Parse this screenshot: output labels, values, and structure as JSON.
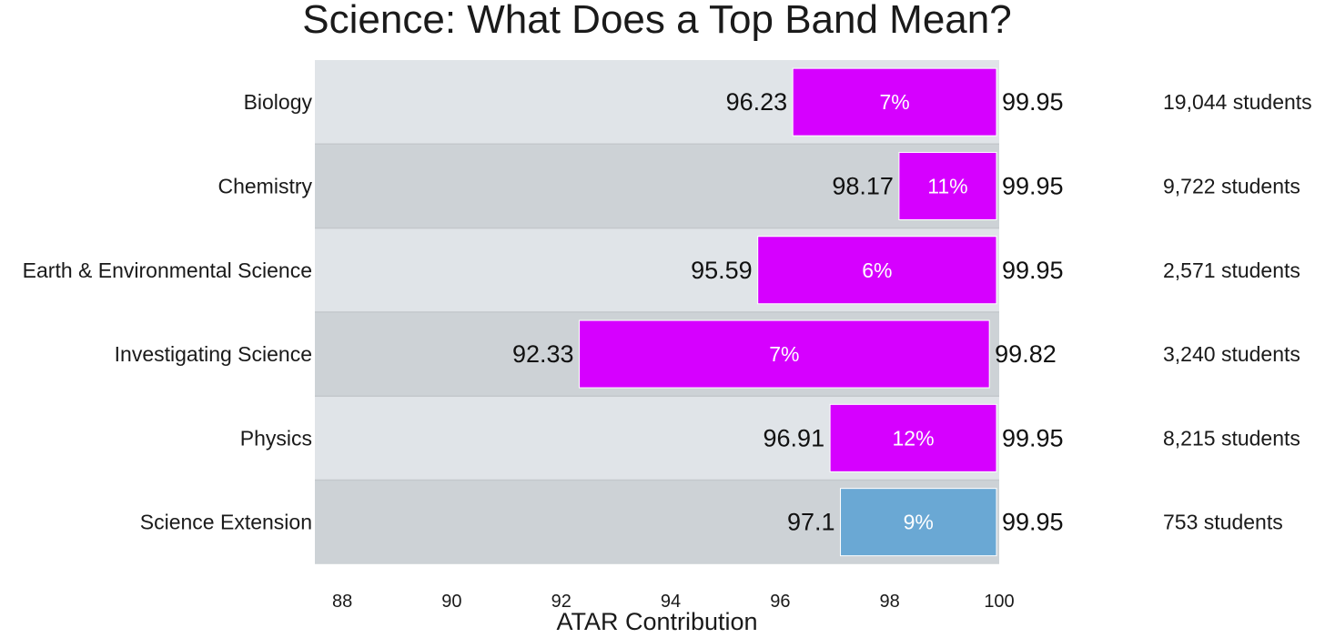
{
  "chart_data": {
    "type": "bar",
    "title": "Science: What Does a Top Band Mean?",
    "xlabel": "ATAR Contribution",
    "ylabel": "",
    "xlim": [
      87.5,
      100
    ],
    "x_ticks": [
      "88",
      "90",
      "92",
      "94",
      "96",
      "98",
      "100"
    ],
    "grid": false,
    "categories": [
      "Biology",
      "Chemistry",
      "Earth & Environmental Science",
      "Investigating Science",
      "Physics",
      "Science Extension"
    ],
    "rows": [
      {
        "subject": "Biology",
        "low": 96.23,
        "high": 99.95,
        "low_label": "96.23",
        "high_label": "99.95",
        "percent": "7%",
        "students": "19,044 students",
        "color": "#d600ff"
      },
      {
        "subject": "Chemistry",
        "low": 98.17,
        "high": 99.95,
        "low_label": "98.17",
        "high_label": "99.95",
        "percent": "11%",
        "students": "9,722 students",
        "color": "#d600ff"
      },
      {
        "subject": "Earth & Environmental Science",
        "low": 95.59,
        "high": 99.95,
        "low_label": "95.59",
        "high_label": "99.95",
        "percent": "6%",
        "students": "2,571 students",
        "color": "#d600ff"
      },
      {
        "subject": "Investigating Science",
        "low": 92.33,
        "high": 99.82,
        "low_label": "92.33",
        "high_label": "99.82",
        "percent": "7%",
        "students": "3,240 students",
        "color": "#d600ff"
      },
      {
        "subject": "Physics",
        "low": 96.91,
        "high": 99.95,
        "low_label": "96.91",
        "high_label": "99.95",
        "percent": "12%",
        "students": "8,215 students",
        "color": "#d600ff"
      },
      {
        "subject": "Science Extension",
        "low": 97.1,
        "high": 99.95,
        "low_label": "97.1",
        "high_label": "99.95",
        "percent": "9%",
        "students": "753 students",
        "color": "#6aa8d4"
      }
    ]
  },
  "colors": {
    "row_light": "#e0e4e8",
    "row_dark": "#cdd2d6",
    "row_divider": "#c4c8cc",
    "highlight": "#d600ff",
    "extension": "#6aa8d4"
  }
}
